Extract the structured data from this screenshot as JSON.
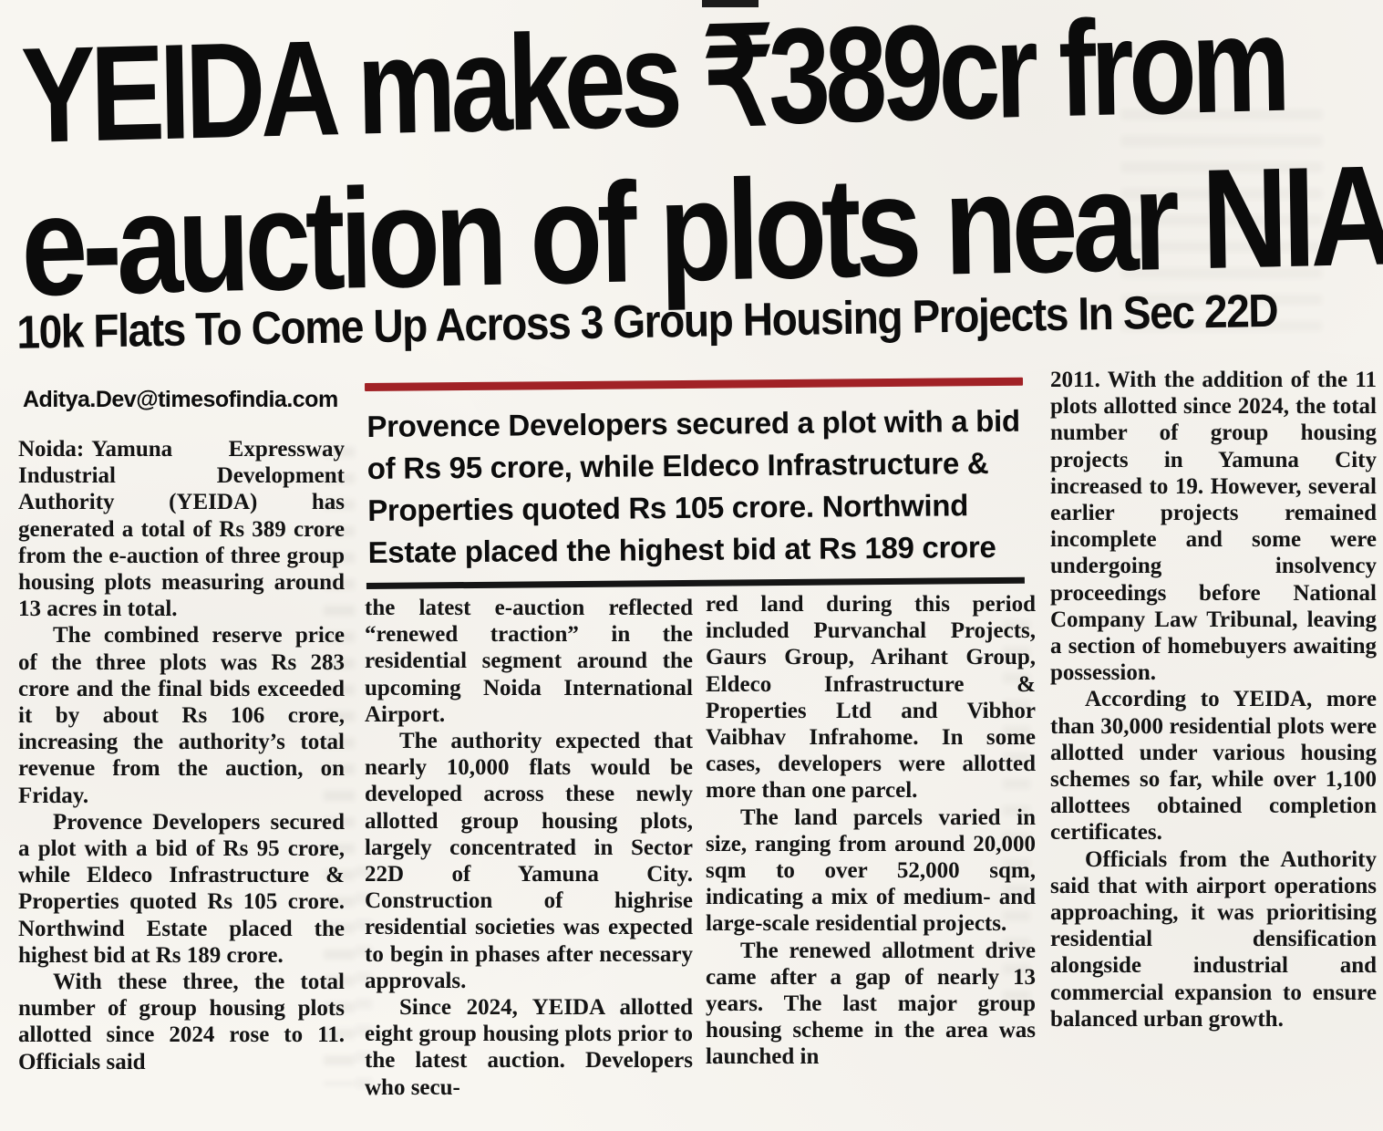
{
  "masthead": {
    "headline_line1": "YEIDA makes ₹389cr from",
    "headline_line2": "e-auction of plots near NIA",
    "subheadline": "10k Flats To Come Up Across 3 Group Housing Projects In Sec 22D",
    "byline": "Aditya.Dev@timesofindia.com"
  },
  "pull_quote": {
    "text": "Provence Developers secured a plot with a bid of Rs 95 crore, while Eldeco Infrastructure & Properties quoted Rs 105 crore. Northwind Estate placed the highest bid at Rs 189 crore",
    "rule_top_color": "#a12226",
    "rule_bottom_color": "#151515"
  },
  "article": {
    "columns": [
      {
        "paragraphs": [
          {
            "lead": "Noida:",
            "text": "Yamuna Expressway Industrial Development Authority (YEIDA) has generated a total of Rs 389 crore from the e-auction of three group housing plots measuring around 13 acres in total."
          },
          {
            "lead": "",
            "text": "The combined reserve price of the three plots was Rs 283 crore and the final bids exceeded it by about Rs 106 crore, increasing the authority’s total revenue from the auction, on Friday."
          },
          {
            "lead": "",
            "text": "Provence Developers secured a plot with a bid of Rs 95 crore, while Eldeco Infrastructure & Properties quoted Rs 105 crore. Northwind Estate placed the highest bid at Rs 189 crore."
          },
          {
            "lead": "",
            "text": "With these three, the total number of group housing plots allotted since 2024 rose to 11. Officials said"
          }
        ]
      },
      {
        "paragraphs": [
          {
            "lead": "",
            "text": "the latest e-auction reflected “renewed traction” in the residential segment around the upcoming Noida International Airport."
          },
          {
            "lead": "",
            "text": "The authority expected that nearly 10,000 flats would be developed across these newly allotted group housing plots, largely concentrated in Sector 22D of Yamuna City. Construction of highrise residential societies was expected to begin in phases after necessary approvals."
          },
          {
            "lead": "",
            "text": "Since 2024, YEIDA allotted eight group housing plots prior to the latest auction. Developers who secu-"
          }
        ]
      },
      {
        "paragraphs": [
          {
            "lead": "",
            "text": "red land during this period included Purvanchal Projects, Gaurs Group, Arihant Group, Eldeco Infrastructure & Properties Ltd and Vibhor Vaibhav Infrahome. In some cases, developers were allotted more than one parcel."
          },
          {
            "lead": "",
            "text": "The land parcels varied in size, ranging from around 20,000 sqm to over 52,000 sqm, indicating a mix of medium- and large-scale residential projects."
          },
          {
            "lead": "",
            "text": "The renewed allotment drive came after a gap of nearly 13 years. The last major group housing scheme in the area was launched in"
          }
        ]
      },
      {
        "paragraphs": [
          {
            "lead": "",
            "text": "2011. With the addition of the 11 plots allotted since 2024, the total number of group housing projects in Yamuna City increased to 19. However, several earlier projects remained incomplete and some were undergoing insolvency proceedings before National Company Law Tribunal, leaving a section of homebuyers awaiting possession."
          },
          {
            "lead": "",
            "text": "According to YEIDA, more than 30,000 residential plots were allotted under various housing schemes so far, while over 1,100 allottees obtained completion certificates."
          },
          {
            "lead": "",
            "text": "Officials from the Authority said that with airport operations approaching, it was prioritising residential densification alongside industrial and commercial expansion to ensure balanced urban growth."
          }
        ]
      }
    ]
  }
}
